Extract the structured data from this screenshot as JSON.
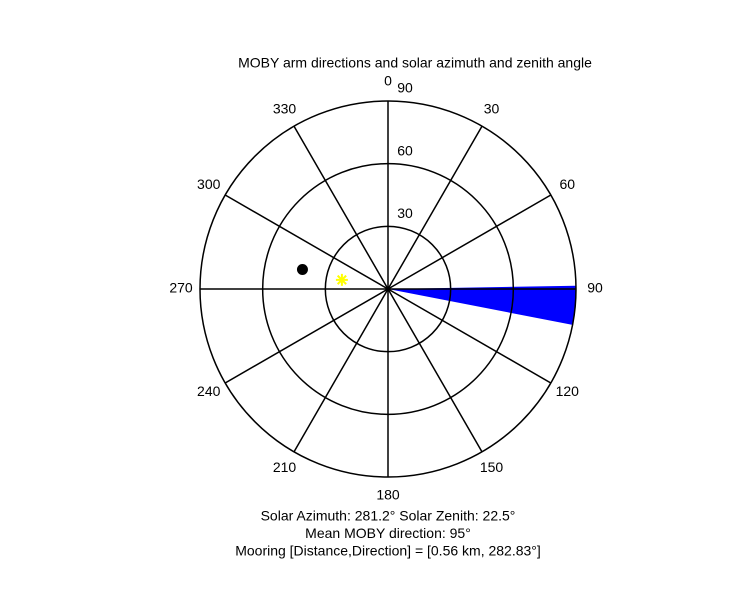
{
  "chart_data": {
    "type": "polar",
    "title": "MOBY arm directions and solar azimuth and zenith angle",
    "theta_ticks": [
      0,
      30,
      60,
      90,
      120,
      150,
      180,
      210,
      240,
      270,
      300,
      330
    ],
    "rlim": [
      0,
      90
    ],
    "r_ticks": [
      30,
      60,
      90
    ],
    "wedge": {
      "theta": [
        89,
        101
      ],
      "r": 90,
      "color": "#0000ff"
    },
    "points": [
      {
        "theta": 281.2,
        "r": 22.5,
        "color": "#ffff00",
        "marker": "star"
      },
      {
        "theta": 282.83,
        "r": 42,
        "color": "#000000",
        "marker": "dot"
      }
    ],
    "annotations": [
      "Solar Azimuth: 281.2°   Solar Zenith: 22.5°",
      "Mean MOBY direction: 95°",
      "Mooring [Distance,Direction] = [0.56 km, 282.83°]"
    ]
  }
}
